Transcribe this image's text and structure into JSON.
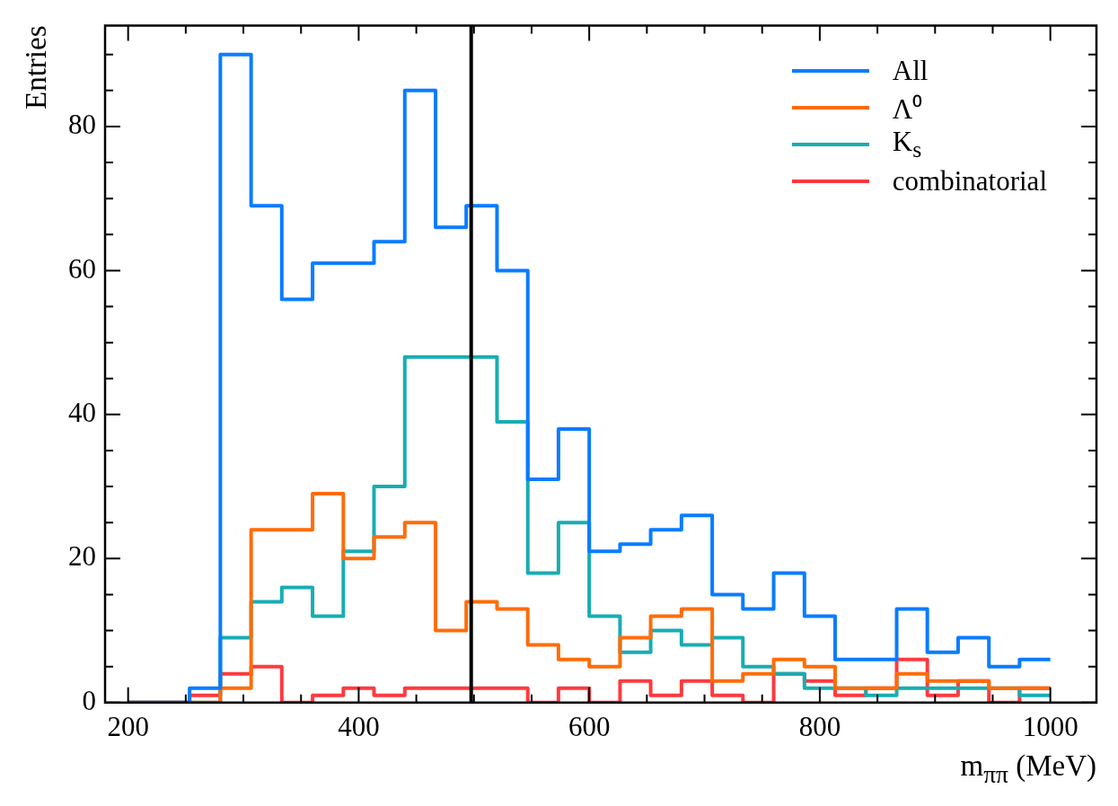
{
  "chart_data": {
    "type": "histogram",
    "xlabel": "m$_{ππ}$ (MeV)",
    "ylabel": "Entries",
    "bins": [
      200,
      226.7,
      253.3,
      280,
      306.7,
      333.3,
      360,
      386.7,
      413.3,
      440,
      466.7,
      493.3,
      520,
      546.7,
      573.3,
      600,
      626.7,
      653.3,
      680,
      706.7,
      733.3,
      760,
      786.7,
      813.3,
      840,
      866.7,
      893.3,
      920,
      946.7,
      973.3,
      1000
    ],
    "series": [
      {
        "name": "All",
        "color": "#0a7cff",
        "values": [
          0,
          0,
          2,
          90,
          69,
          56,
          61,
          61,
          64,
          85,
          66,
          69,
          60,
          31,
          38,
          21,
          22,
          24,
          26,
          15,
          13,
          18,
          12,
          6,
          6,
          13,
          7,
          9,
          5,
          6
        ]
      },
      {
        "name": "Λ⁰",
        "color": "#ff6c0a",
        "values": [
          0,
          0,
          0,
          2,
          24,
          24,
          29,
          20,
          23,
          25,
          10,
          14,
          13,
          8,
          6,
          5,
          9,
          12,
          13,
          3,
          4,
          6,
          5,
          2,
          2,
          4,
          3,
          3,
          2,
          2
        ]
      },
      {
        "name": "K$_{s}$",
        "color": "#17adb3",
        "values": [
          0,
          0,
          0,
          9,
          14,
          16,
          12,
          21,
          30,
          48,
          48,
          48,
          39,
          18,
          25,
          12,
          7,
          10,
          8,
          9,
          5,
          4,
          2,
          2,
          1,
          2,
          2,
          2,
          2,
          1
        ]
      },
      {
        "name": "combinatorial",
        "color": "#ff3a3f",
        "values": [
          0,
          0,
          1,
          4,
          5,
          0,
          1,
          2,
          1,
          2,
          2,
          2,
          2,
          0,
          2,
          0,
          3,
          1,
          3,
          1,
          0,
          4,
          3,
          1,
          2,
          6,
          1,
          3,
          0,
          2
        ]
      }
    ],
    "xlim": [
      180,
      1040
    ],
    "xticks": [
      200,
      {
        "value": 250,
        "label": null
      },
      {
        "value": 300,
        "label": null
      },
      {
        "value": 350,
        "label": null
      },
      400,
      {
        "value": 450,
        "label": null
      },
      {
        "value": 500,
        "label": null
      },
      {
        "value": 550,
        "label": null
      },
      600,
      {
        "value": 650,
        "label": null
      },
      {
        "value": 700,
        "label": null
      },
      {
        "value": 750,
        "label": null
      },
      800,
      {
        "value": 850,
        "label": null
      },
      {
        "value": 900,
        "label": null
      },
      {
        "value": 950,
        "label": null
      },
      1000
    ],
    "ylim": [
      0,
      94
    ],
    "yticks": [
      0,
      {
        "value": 5,
        "label": null
      },
      {
        "value": 10,
        "label": null
      },
      {
        "value": 15,
        "label": null
      },
      20,
      {
        "value": 25,
        "label": null
      },
      {
        "value": 30,
        "label": null
      },
      {
        "value": 35,
        "label": null
      },
      40,
      {
        "value": 45,
        "label": null
      },
      {
        "value": 50,
        "label": null
      },
      {
        "value": 55,
        "label": null
      },
      60,
      {
        "value": 65,
        "label": null
      },
      {
        "value": 70,
        "label": null
      },
      {
        "value": 75,
        "label": null
      },
      80,
      {
        "value": 85,
        "label": null
      },
      {
        "value": 90,
        "label": null
      }
    ],
    "ref_lines": [
      {
        "axis": "x",
        "value": 497.6,
        "color": "#000000"
      }
    ],
    "legend": "top right"
  }
}
